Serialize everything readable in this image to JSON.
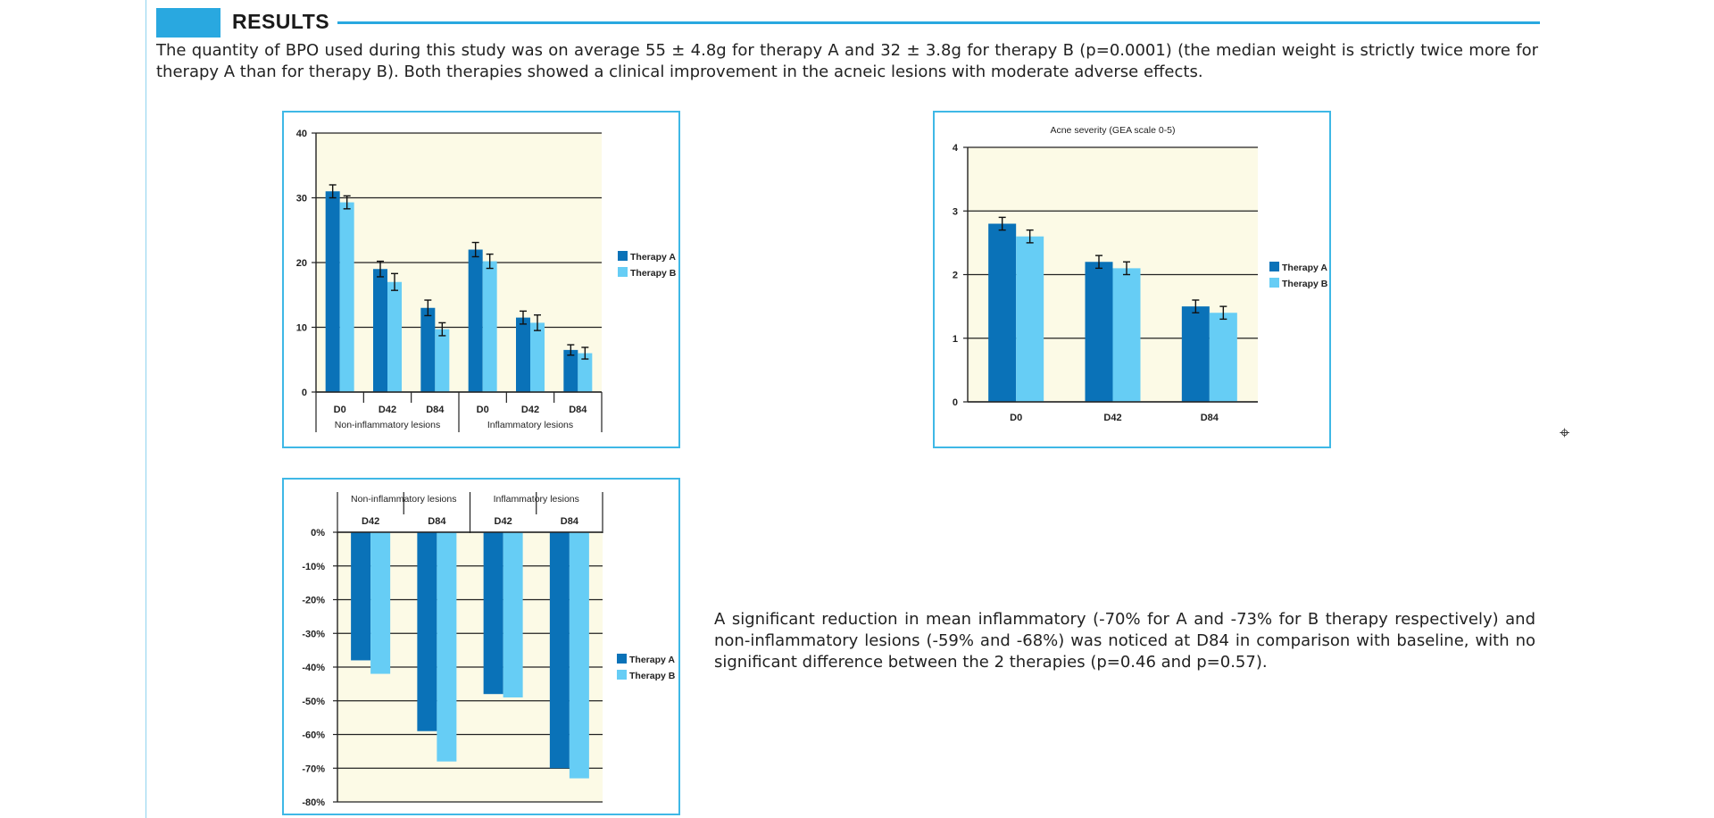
{
  "header": {
    "title": "RESULTS"
  },
  "paragraphs": {
    "p1": "The quantity of BPO used during this study was on average 55 ± 4.8g for therapy A and 32 ± 3.8g for therapy B (p=0.0001) (the median weight is strictly twice more for therapy A than for therapy B). Both therapies showed a clinical improvement in the acneic lesions with moderate adverse effects.",
    "p2": "A significant reduction in mean inflammatory (-70% for A and -73% for B therapy respectively) and non-inflammatory lesions (-59% and -68%) was noticed at D84 in comparison with baseline, with no significant difference between the 2 therapies (p=0.46 and p=0.57)."
  },
  "colors": {
    "therapy_a": "#0a72b8",
    "therapy_b": "#66cdf5",
    "plot_bg": "#fcfae6",
    "frame": "#3fb8e6"
  },
  "cursor_icon": "crosshair-icon",
  "chart_data": [
    {
      "id": "lesions-count",
      "type": "bar",
      "title": "",
      "categories": [
        "D0",
        "D42",
        "D84",
        "D0",
        "D42",
        "D84"
      ],
      "groups": [
        {
          "label": "Non-inflammatory lesions",
          "categories": [
            "D0",
            "D42",
            "D84"
          ]
        },
        {
          "label": "Inflammatory lesions",
          "categories": [
            "D0",
            "D42",
            "D84"
          ]
        }
      ],
      "series": [
        {
          "name": "Therapy A",
          "values": [
            31,
            19,
            13,
            22,
            11.5,
            6.5
          ],
          "errors": [
            1,
            1.2,
            1.2,
            1.1,
            1,
            0.8
          ]
        },
        {
          "name": "Therapy B",
          "values": [
            29.3,
            17,
            9.7,
            20.2,
            10.7,
            6
          ],
          "errors": [
            1,
            1.3,
            1,
            1.1,
            1.2,
            0.9
          ]
        }
      ],
      "yticks": [
        0,
        10,
        20,
        30,
        40
      ],
      "ylim": [
        0,
        40
      ],
      "grid": true,
      "legend": "right"
    },
    {
      "id": "acne-severity",
      "type": "bar",
      "title": "Acne severity (GEA scale 0-5)",
      "categories": [
        "D0",
        "D42",
        "D84"
      ],
      "series": [
        {
          "name": "Therapy A",
          "values": [
            2.8,
            2.2,
            1.5
          ],
          "errors": [
            0.1,
            0.1,
            0.1
          ]
        },
        {
          "name": "Therapy B",
          "values": [
            2.6,
            2.1,
            1.4
          ],
          "errors": [
            0.1,
            0.1,
            0.1
          ]
        }
      ],
      "yticks": [
        0,
        1,
        2,
        3,
        4
      ],
      "ylim": [
        0,
        4
      ],
      "grid": true,
      "legend": "right"
    },
    {
      "id": "lesion-reduction",
      "type": "bar",
      "title": "",
      "categories": [
        "D42",
        "D84",
        "D42",
        "D84"
      ],
      "groups": [
        {
          "label": "Non-inflammatory lesions",
          "categories": [
            "D42",
            "D84"
          ]
        },
        {
          "label": "Inflammatory lesions",
          "categories": [
            "D42",
            "D84"
          ]
        }
      ],
      "series": [
        {
          "name": "Therapy A",
          "values": [
            -38,
            -59,
            -48,
            -70
          ]
        },
        {
          "name": "Therapy B",
          "values": [
            -42,
            -68,
            -49,
            -73
          ]
        }
      ],
      "yticks": [
        "0%",
        "-10%",
        "-20%",
        "-30%",
        "-40%",
        "-50%",
        "-60%",
        "-70%",
        "-80%"
      ],
      "ylim": [
        -80,
        0
      ],
      "grid": true,
      "legend": "right"
    }
  ]
}
